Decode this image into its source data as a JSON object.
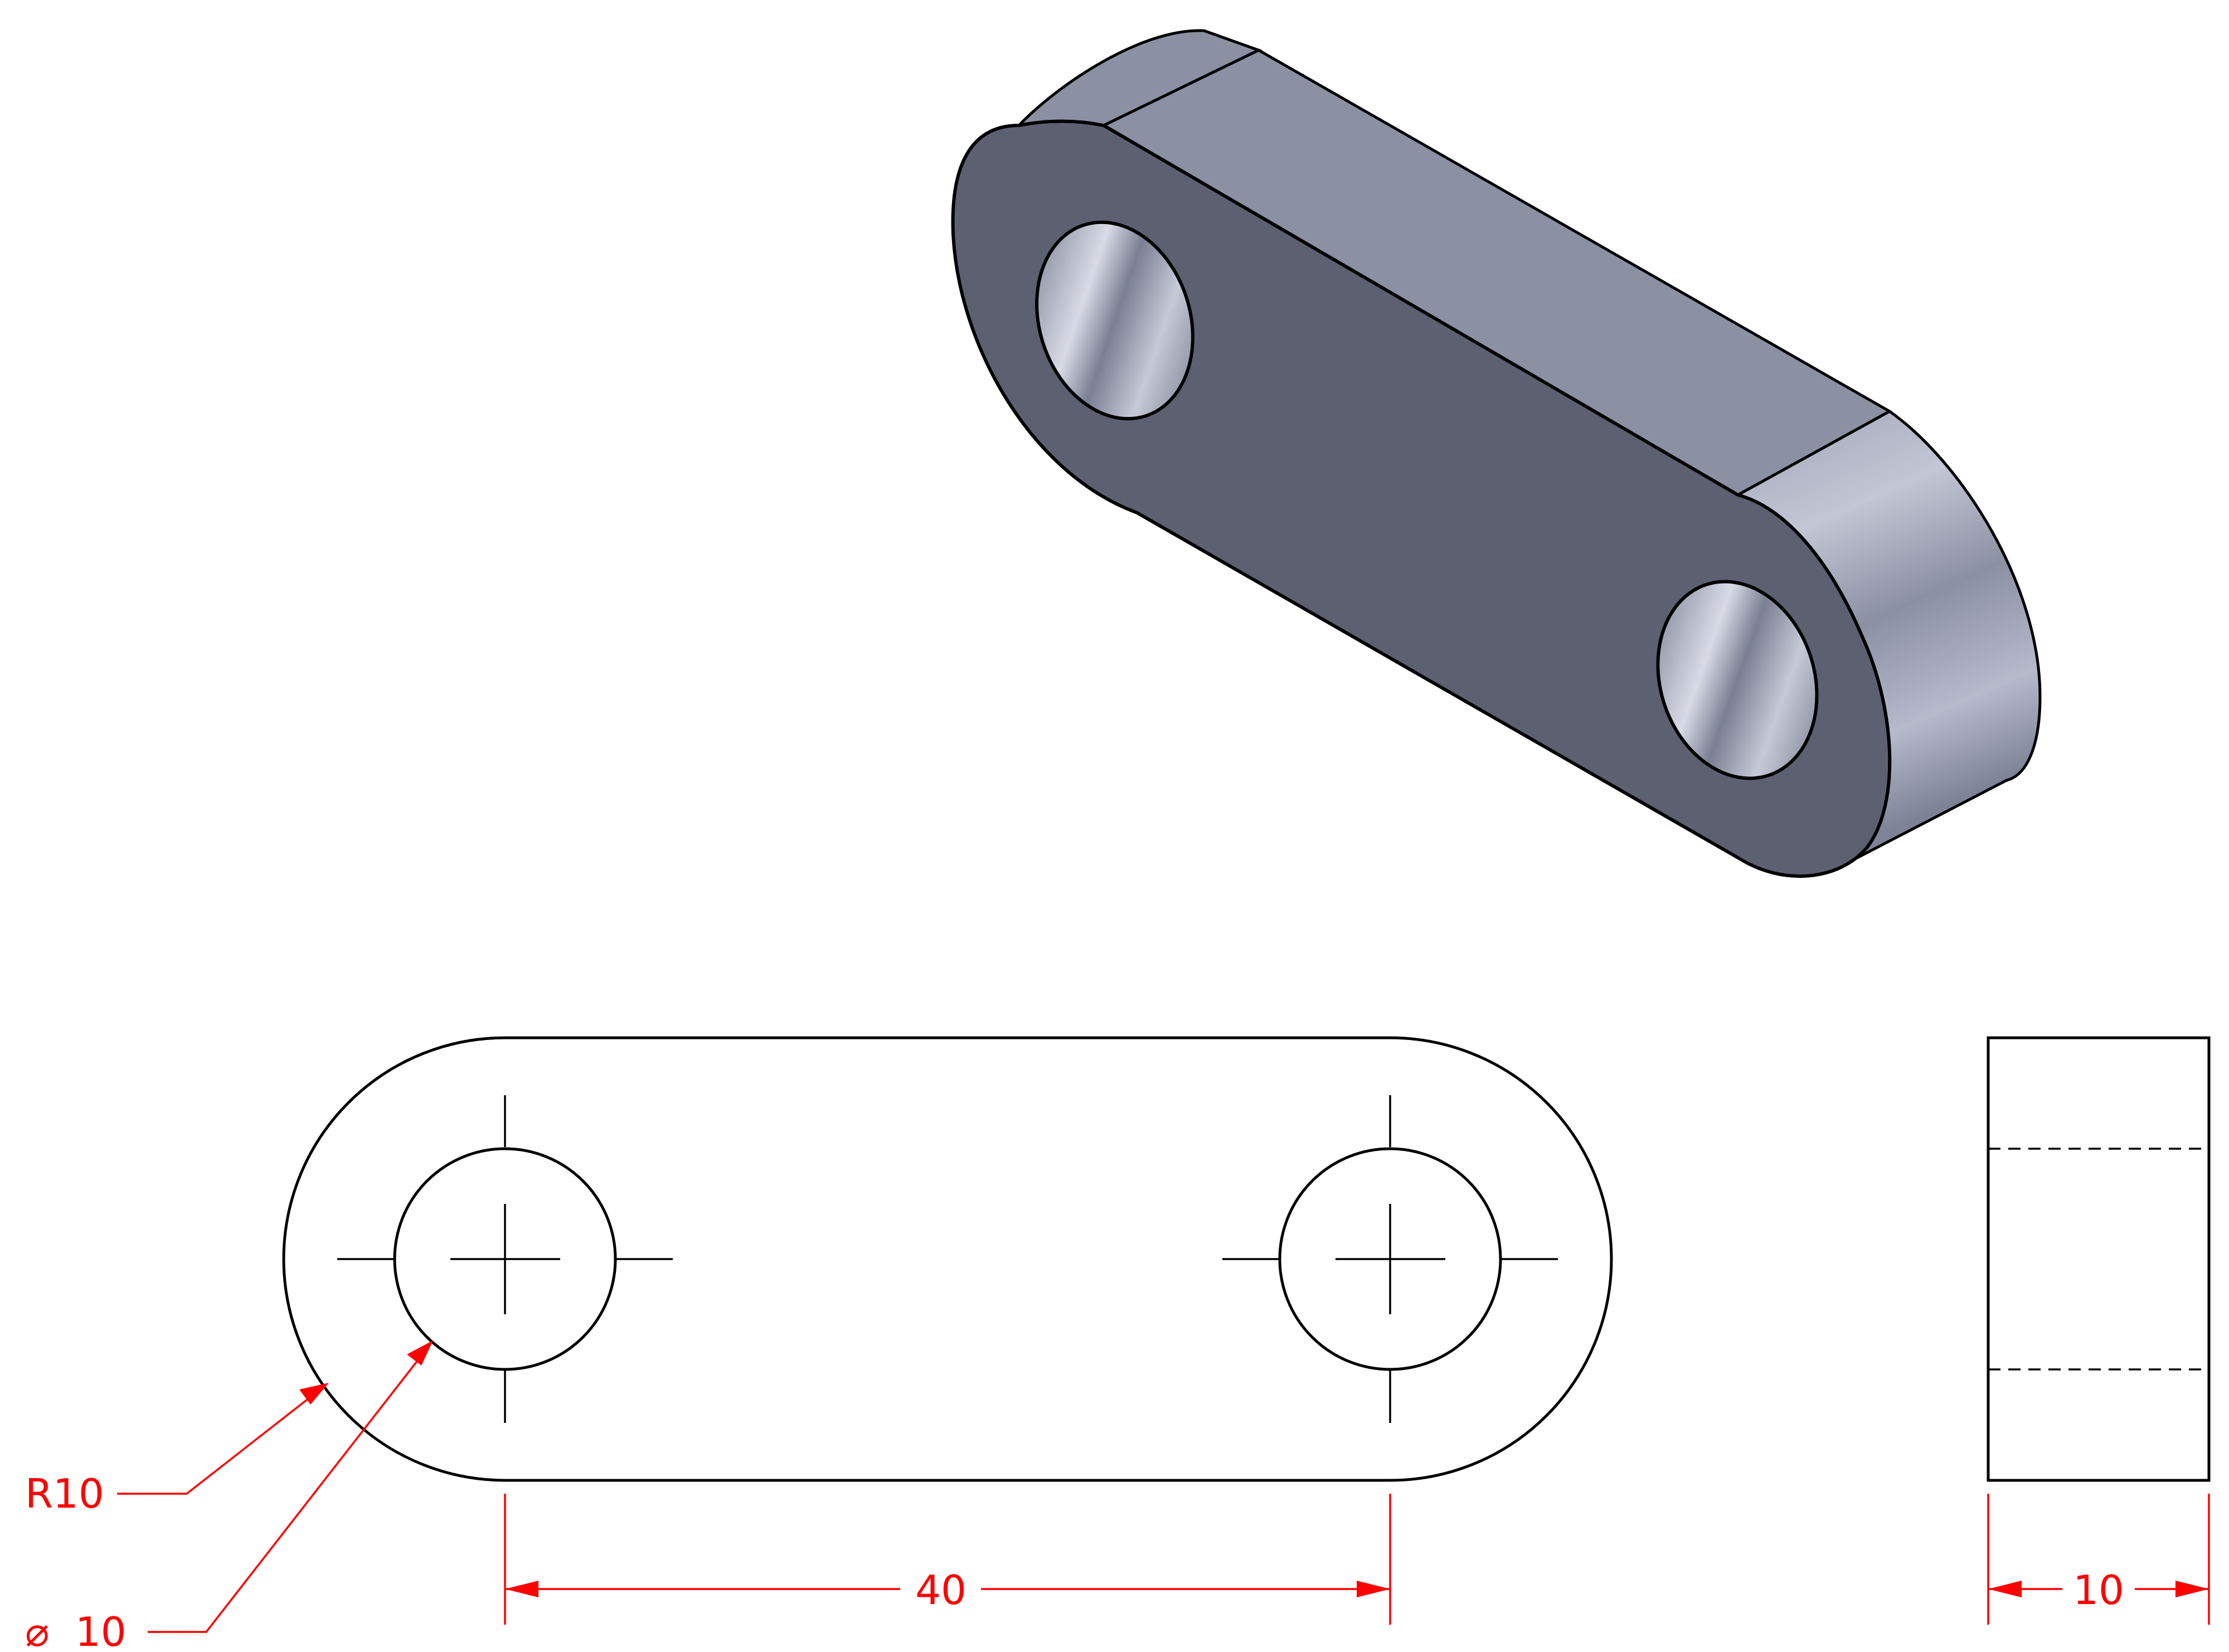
{
  "dimensions": {
    "radius_label": "R10",
    "diameter_label": "10",
    "diameter_symbol": "⌀",
    "center_distance_label": "40",
    "thickness_label": "10"
  },
  "colors": {
    "dimension": "#ff0000",
    "outline": "#000000",
    "face_front": "#5d6070",
    "face_top": "#8b90a3",
    "face_curved": "#a9adc2"
  },
  "views": [
    "isometric",
    "front",
    "side"
  ]
}
